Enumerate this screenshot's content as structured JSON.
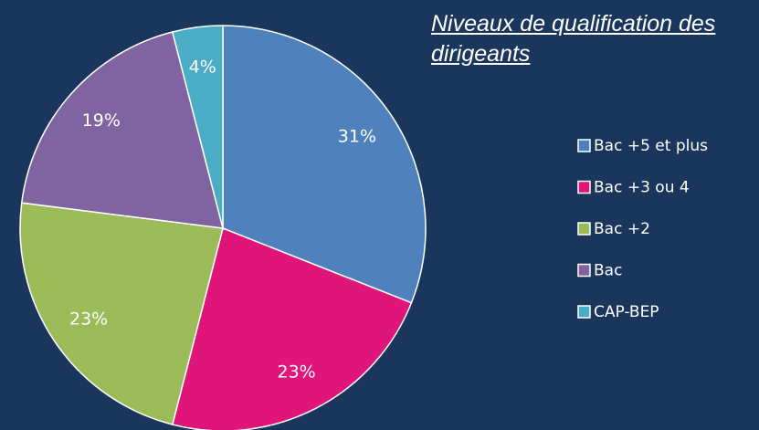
{
  "chart_data": {
    "type": "pie",
    "title": "Niveaux de qualification des dirigeants",
    "categories": [
      "Bac +5 et plus",
      "Bac +3 ou 4",
      "Bac +2",
      "Bac",
      "CAP-BEP"
    ],
    "values": [
      31,
      23,
      23,
      19,
      4
    ],
    "value_labels": [
      "31%",
      "23%",
      "23%",
      "19%",
      "4%"
    ],
    "colors": [
      "#4f81bd",
      "#e0157a",
      "#9bbb59",
      "#8064a2",
      "#4bacc6"
    ],
    "legend": "right"
  }
}
